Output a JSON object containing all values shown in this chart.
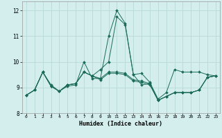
{
  "title": "",
  "xlabel": "Humidex (Indice chaleur)",
  "ylabel": "",
  "bg_color": "#d4eeee",
  "grid_color": "#b8d8d8",
  "line_color": "#1a6b5a",
  "xlim": [
    -0.5,
    23.5
  ],
  "ylim": [
    8.0,
    12.35
  ],
  "yticks": [
    8,
    9,
    10,
    11,
    12
  ],
  "xticks": [
    0,
    1,
    2,
    3,
    4,
    5,
    6,
    7,
    8,
    9,
    10,
    11,
    12,
    13,
    14,
    15,
    16,
    17,
    18,
    19,
    20,
    21,
    22,
    23
  ],
  "series": [
    [
      8.7,
      8.9,
      9.6,
      9.1,
      8.85,
      9.05,
      9.1,
      10.0,
      9.35,
      9.35,
      11.0,
      12.0,
      11.5,
      9.5,
      9.55,
      9.2,
      8.55,
      8.8,
      9.7,
      9.6,
      9.6,
      9.6,
      9.5,
      9.45
    ],
    [
      8.7,
      8.9,
      9.6,
      9.05,
      8.85,
      9.1,
      9.15,
      9.6,
      9.45,
      9.7,
      10.0,
      11.75,
      11.45,
      9.5,
      9.1,
      9.15,
      8.5,
      8.65,
      8.8,
      8.8,
      8.8,
      8.9,
      9.4,
      9.45
    ],
    [
      8.7,
      8.9,
      9.6,
      9.05,
      8.85,
      9.1,
      9.15,
      9.6,
      9.45,
      9.3,
      9.55,
      9.55,
      9.5,
      9.25,
      9.2,
      9.1,
      8.5,
      8.65,
      8.8,
      8.8,
      8.8,
      8.9,
      9.4,
      9.45
    ],
    [
      8.7,
      8.9,
      9.6,
      9.05,
      8.85,
      9.1,
      9.15,
      9.6,
      9.45,
      9.35,
      9.6,
      9.6,
      9.55,
      9.3,
      9.25,
      9.15,
      8.5,
      8.65,
      8.8,
      8.8,
      8.8,
      8.9,
      9.4,
      9.45
    ]
  ],
  "xlabel_fontsize": 6.0,
  "xtick_fontsize": 4.5,
  "ytick_fontsize": 5.5
}
